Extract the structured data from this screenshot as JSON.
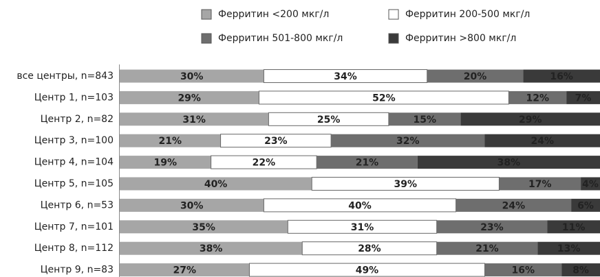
{
  "chart_data": {
    "type": "stacked-bar-100",
    "categories": [
      "все центры, n=843",
      "Центр 1, n=103",
      "Центр 2, n=82",
      "Центр 3, n=100",
      "Центр 4, n=104",
      "Центр 5, n=105",
      "Центр 6, n=53",
      "Центр 7, n=101",
      "Центр 8, n=112",
      "Центр 9, n=83"
    ],
    "series": [
      {
        "name": "Ферритин <200 мкг/л",
        "color": "#a6a6a6",
        "values": [
          30,
          29,
          31,
          21,
          19,
          40,
          30,
          35,
          38,
          27
        ],
        "value_labels": [
          "30%",
          "29%",
          "31%",
          "21%",
          "19%",
          "40%",
          "30%",
          "35%",
          "38%",
          "27%"
        ]
      },
      {
        "name": "Ферритин 200-500 мкг/л",
        "color": "#ffffff",
        "values": [
          34,
          52,
          25,
          23,
          22,
          39,
          40,
          31,
          28,
          49
        ],
        "value_labels": [
          "34%",
          "52%",
          "25%",
          "23%",
          "22%",
          "39%",
          "40%",
          "31%",
          "28%",
          "49%"
        ]
      },
      {
        "name": "Ферритин 501-800 мкг/л",
        "color": "#6e6e6e",
        "values": [
          20,
          12,
          15,
          32,
          21,
          17,
          24,
          23,
          21,
          16
        ],
        "value_labels": [
          "20%",
          "12%",
          "15%",
          "32%",
          "21%",
          "17%",
          "24%",
          "23%",
          "21%",
          "16%"
        ]
      },
      {
        "name": "Ферритин >800 мкг/л",
        "color": "#3a3a3a",
        "values": [
          16,
          7,
          29,
          24,
          38,
          4,
          6,
          11,
          13,
          8
        ],
        "value_labels": [
          "16%",
          "7%",
          "29%",
          "24%",
          "38%",
          "4%",
          "6%",
          "11%",
          "13%",
          "8%"
        ]
      }
    ]
  }
}
